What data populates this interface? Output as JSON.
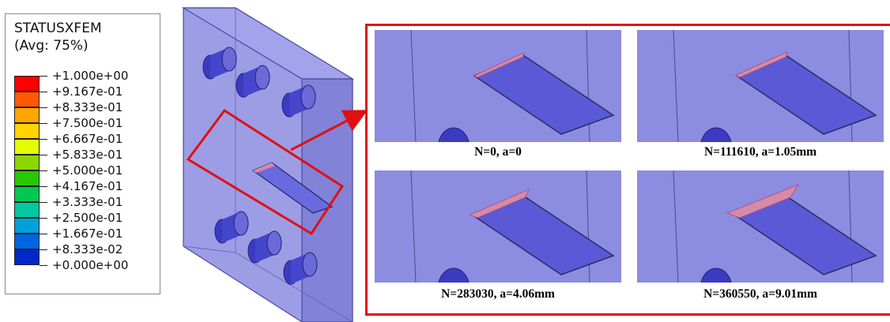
{
  "legend": {
    "title": "STATUSXFEM",
    "subtitle": "(Avg: 75%)",
    "ticks": [
      "+1.000e+00",
      "+9.167e-01",
      "+8.333e-01",
      "+7.500e-01",
      "+6.667e-01",
      "+5.833e-01",
      "+5.000e-01",
      "+4.167e-01",
      "+3.333e-01",
      "+2.500e-01",
      "+1.667e-01",
      "+8.333e-02",
      "+0.000e+00"
    ],
    "colors": [
      "#ff0000",
      "#ff5a00",
      "#ffa500",
      "#ffd200",
      "#e6ff00",
      "#8cd700",
      "#28c800",
      "#00c850",
      "#00c8a0",
      "#00a0dc",
      "#0064e6",
      "#0028c8"
    ]
  },
  "colors": {
    "body_fill": "#8c8ce0",
    "body_edge": "#4a4aa0",
    "crack_fill": "#d58aa8",
    "highlight": "#e01010"
  },
  "panels": [
    {
      "caption": "N=0, a=0",
      "crack": 0
    },
    {
      "caption": "N=111610, a=1.05mm",
      "crack": 1.05
    },
    {
      "caption": "N=283030, a=4.06mm",
      "crack": 4.06
    },
    {
      "caption": "N=360550, a=9.01mm",
      "crack": 9.01
    }
  ]
}
